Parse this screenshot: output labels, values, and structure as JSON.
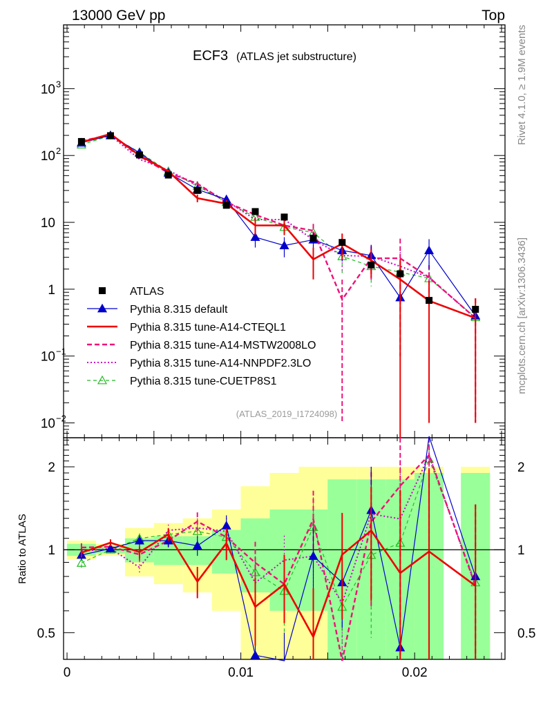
{
  "header": {
    "left": "13000 GeV pp",
    "right": "Top"
  },
  "side_labels": {
    "top": "Rivet 4.1.0, ≥ 1.9M events",
    "bottom": "mcplots.cern.ch [arXiv:1306.3436]"
  },
  "colors": {
    "data": "#000000",
    "default": "#0000cc",
    "a14cteq": "#ee0000",
    "mstw": "#ee1177",
    "nnpdf": "#cc00cc",
    "cuetp8s1": "#22bb22",
    "band_inner": "#99ff99",
    "band_outer": "#ffff99"
  },
  "chart_data": [
    {
      "type": "line",
      "title": "ECF3",
      "subtitle": "(ATLAS jet substructure)",
      "watermark": "(ATLAS_2019_I1724098)",
      "yscale": "log",
      "xlim": [
        -0.0002,
        0.0252
      ],
      "ylim": [
        0.006,
        9000
      ],
      "x_ticks": [
        "0",
        "0.01",
        "0.02"
      ],
      "y_ticks": [
        {
          "value": 0.01,
          "base": "10",
          "exp": "−2"
        },
        {
          "value": 0.1,
          "base": "10",
          "exp": "−1"
        },
        {
          "value": 1,
          "base": "1",
          "exp": ""
        },
        {
          "value": 10,
          "base": "10",
          "exp": ""
        },
        {
          "value": 100,
          "base": "10",
          "exp": "2"
        },
        {
          "value": 1000,
          "base": "10",
          "exp": "3"
        }
      ],
      "x": [
        0.00083,
        0.0025,
        0.00417,
        0.00583,
        0.0075,
        0.00917,
        0.01083,
        0.0125,
        0.01417,
        0.01583,
        0.0175,
        0.01917,
        0.02083,
        0.0235
      ],
      "data": {
        "name": "ATLAS",
        "values": [
          162,
          198,
          102,
          51,
          30,
          18,
          14.5,
          12,
          5.8,
          5,
          2.3,
          1.7,
          0.68,
          0.5
        ],
        "band_inner": [
          0.05,
          0.03,
          0.1,
          0.12,
          0.12,
          0.18,
          0.3,
          0.4,
          0.4,
          0.8,
          0.8,
          0.8,
          0.9,
          0.9
        ],
        "band_outer": [
          0.08,
          0.05,
          0.2,
          0.25,
          0.3,
          0.4,
          0.7,
          0.9,
          1.0,
          1.0,
          1.0,
          1.0,
          1.0,
          1.0
        ]
      },
      "legend": [
        {
          "name": "ATLAS",
          "key": "data",
          "style": "square"
        },
        {
          "name": "Pythia 8.315 default",
          "key": "default",
          "style": "solid-triangle"
        },
        {
          "name": "Pythia 8.315 tune-A14-CTEQL1",
          "key": "a14cteq",
          "style": "solid-thick"
        },
        {
          "name": "Pythia 8.315 tune-A14-MSTW2008LO",
          "key": "mstw",
          "style": "dashed-thick"
        },
        {
          "name": "Pythia 8.315 tune-A14-NNPDF2.3LO",
          "key": "nnpdf",
          "style": "dotted"
        },
        {
          "name": "Pythia 8.315 tune-CUETP8S1",
          "key": "cuetp8s1",
          "style": "dashed-open-triangle"
        }
      ],
      "series": [
        {
          "name": "Pythia 8.315 default",
          "key": "default",
          "values": [
            155,
            200,
            110,
            55,
            31,
            22,
            6,
            4.5,
            5.5,
            3.8,
            3.2,
            0.75,
            3.8,
            0.4
          ],
          "errors": [
            6,
            6,
            5,
            3,
            2.5,
            2,
            1.8,
            1.5,
            1.5,
            1.2,
            1.4,
            1.2,
            1.8,
            0.25
          ]
        },
        {
          "name": "Pythia 8.315 tune-A14-CTEQL1",
          "key": "a14cteq",
          "values": [
            158,
            210,
            100,
            58,
            23,
            19,
            9,
            9,
            2.8,
            4.8,
            2.7,
            1.4,
            0.67,
            0.37
          ],
          "errors": [
            6,
            6,
            5,
            3,
            3,
            2.5,
            2.5,
            2.5,
            1.4,
            2,
            1.2,
            1.4,
            0.66,
            0.36
          ]
        },
        {
          "name": "Pythia 8.315 tune-A14-MSTW2008LO",
          "key": "mstw",
          "values": [
            165,
            203,
            98,
            55,
            38,
            20,
            13,
            9,
            7.5,
            0.7,
            2.9,
            2.9,
            1.5,
            0.37
          ],
          "errors": [
            6,
            6,
            5,
            3,
            3,
            2.5,
            2.5,
            2.5,
            2,
            0.69,
            1.5,
            2.8,
            0.8,
            0.36
          ]
        },
        {
          "name": "Pythia 8.315 tune-A14-NNPDF2.3LO",
          "key": "nnpdf",
          "values": [
            160,
            200,
            88,
            60,
            36,
            21,
            11,
            11,
            5.5,
            3.2,
            3.1,
            2.2,
            1.5,
            0.37
          ],
          "errors": [
            6,
            6,
            5,
            3,
            3,
            2.5,
            2.5,
            2.5,
            1.8,
            1.4,
            1.5,
            1.4,
            0.8,
            0.36
          ]
        },
        {
          "name": "Pythia 8.315 tune-CUETP8S1",
          "key": "cuetp8s1",
          "values": [
            145,
            198,
            112,
            58,
            35,
            20,
            12,
            8.5,
            7,
            3.1,
            2.2,
            1.8,
            1.45,
            0.38
          ],
          "errors": [
            6,
            6,
            5,
            3,
            3,
            2.5,
            2.5,
            2.5,
            2,
            1.5,
            1.1,
            1.5,
            1.2,
            0.3
          ]
        }
      ]
    },
    {
      "type": "line",
      "title": "",
      "ylabel": "Ratio to ATLAS",
      "yscale": "log",
      "xlim": [
        -0.0002,
        0.0252
      ],
      "ylim": [
        0.4,
        2.55
      ],
      "y_ticks": [
        "0.5",
        "1",
        "2"
      ],
      "x_ticks": [
        "0",
        "0.01",
        "0.02"
      ],
      "reference": 1
    }
  ]
}
